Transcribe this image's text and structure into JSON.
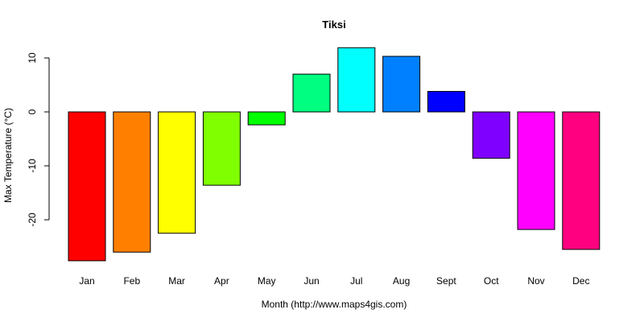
{
  "chart_data": {
    "type": "bar",
    "title": "Tiksi",
    "xlabel": "Month (http://www.maps4gis.com)",
    "ylabel": "Max Temperature (°C)",
    "categories": [
      "Jan",
      "Feb",
      "Mar",
      "Apr",
      "May",
      "Jun",
      "Jul",
      "Aug",
      "Sept",
      "Oct",
      "Nov",
      "Dec"
    ],
    "values": [
      -27.6,
      -26.0,
      -22.5,
      -13.6,
      -2.4,
      7.0,
      11.9,
      10.3,
      3.8,
      -8.6,
      -21.8,
      -25.5
    ],
    "colors": [
      "#FF0000",
      "#FF8000",
      "#FFFF00",
      "#80FF00",
      "#00FF00",
      "#00FF80",
      "#00FFFF",
      "#0080FF",
      "#0000FF",
      "#8000FF",
      "#FF00FF",
      "#FF0080"
    ],
    "yticks": [
      -20,
      -10,
      0,
      10
    ],
    "ylim": [
      -29,
      13
    ],
    "grid": false,
    "legend": "none"
  }
}
